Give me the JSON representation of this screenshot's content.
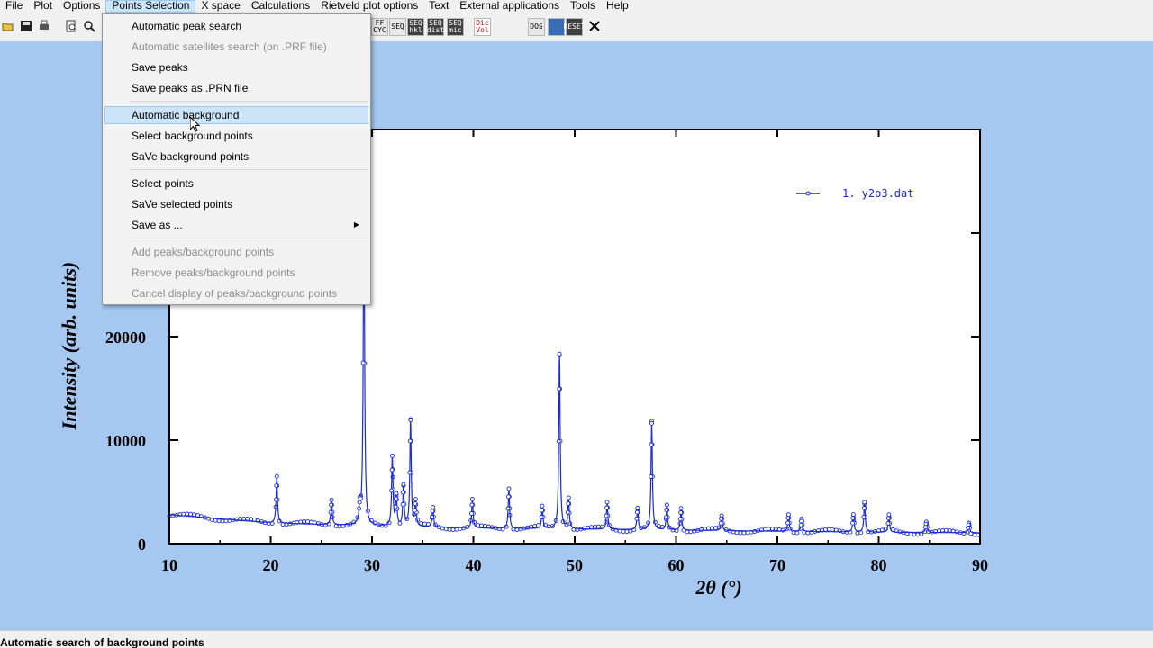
{
  "menubar": {
    "items": [
      "File",
      "Plot",
      "Options",
      "Points Selection",
      "X space",
      "Calculations",
      "Rietveld plot options",
      "Text",
      "External applications",
      "Tools",
      "Help"
    ],
    "active_index": 3
  },
  "toolbar": {
    "buttons": [
      "open-icon",
      "save-icon",
      "print-icon",
      "preview-icon",
      "zoom-icon"
    ],
    "labeled_buttons": [
      {
        "name": "ffcyc-button",
        "label": "FF CYC"
      },
      {
        "name": "seq-button",
        "label": "SEQ"
      },
      {
        "name": "seq-hkl-button",
        "label": "SEQ hkl"
      },
      {
        "name": "seq-dist-button",
        "label": "SEQ dist"
      },
      {
        "name": "seq-mic-button",
        "label": "SEQ mic"
      },
      {
        "name": "dicvol-button",
        "label": "Dic Vol"
      },
      {
        "name": "dos-button",
        "label": "DOS"
      },
      {
        "name": "image-button",
        "label": ""
      },
      {
        "name": "reset-button",
        "label": "RESET"
      }
    ],
    "close_icon": "close-icon"
  },
  "dropdown": {
    "items": [
      {
        "label": "Automatic peak search",
        "enabled": true
      },
      {
        "label": "Automatic satellites search (on .PRF file)",
        "enabled": false
      },
      {
        "label": "Save peaks",
        "enabled": true
      },
      {
        "label": "Save peaks as .PRN file",
        "enabled": true
      },
      {
        "label": "Automatic background",
        "enabled": true,
        "highlighted": true
      },
      {
        "label": "Select background points",
        "enabled": true
      },
      {
        "label": "SaVe background points",
        "enabled": true
      },
      {
        "label": "Select points",
        "enabled": true
      },
      {
        "label": "SaVe selected points",
        "enabled": true
      },
      {
        "label": "Save as ...",
        "enabled": true,
        "submenu": true
      },
      {
        "label": "Add peaks/background points",
        "enabled": false
      },
      {
        "label": "Remove peaks/background points",
        "enabled": false
      },
      {
        "label": "Cancel display of peaks/background points",
        "enabled": false
      }
    ]
  },
  "status": {
    "text": "Automatic search of background points"
  },
  "chart_data": {
    "type": "line",
    "title": "",
    "xlabel": "2θ (°)",
    "ylabel": "Intensity (arb. units)",
    "xlim": [
      10,
      90
    ],
    "ylim": [
      0,
      40000
    ],
    "x_ticks": [
      10,
      20,
      30,
      40,
      50,
      60,
      70,
      80,
      90
    ],
    "y_ticks": [
      0,
      10000,
      20000
    ],
    "legend": {
      "label": "1. y2o3.dat",
      "placement": "top-right"
    },
    "series_color": "#1a2bd1",
    "background": {
      "x": [
        10,
        20,
        30,
        40,
        50,
        60,
        70,
        80,
        90
      ],
      "y": [
        2800,
        2000,
        1700,
        1500,
        1400,
        1300,
        1200,
        1100,
        1050
      ]
    },
    "peaks": [
      {
        "x": 20.6,
        "y": 6500
      },
      {
        "x": 26.0,
        "y": 4200
      },
      {
        "x": 28.8,
        "y": 3300
      },
      {
        "x": 29.2,
        "y": 33000
      },
      {
        "x": 32.0,
        "y": 8300
      },
      {
        "x": 32.4,
        "y": 4500
      },
      {
        "x": 33.1,
        "y": 5500
      },
      {
        "x": 33.8,
        "y": 11800
      },
      {
        "x": 34.3,
        "y": 4000
      },
      {
        "x": 36.0,
        "y": 3500
      },
      {
        "x": 39.9,
        "y": 4300
      },
      {
        "x": 43.5,
        "y": 5300
      },
      {
        "x": 46.8,
        "y": 3600
      },
      {
        "x": 48.5,
        "y": 18300
      },
      {
        "x": 49.4,
        "y": 4300
      },
      {
        "x": 53.2,
        "y": 4000
      },
      {
        "x": 56.2,
        "y": 3400
      },
      {
        "x": 57.6,
        "y": 11600
      },
      {
        "x": 59.1,
        "y": 3700
      },
      {
        "x": 60.5,
        "y": 3400
      },
      {
        "x": 64.5,
        "y": 2700
      },
      {
        "x": 71.1,
        "y": 2800
      },
      {
        "x": 72.4,
        "y": 2400
      },
      {
        "x": 77.5,
        "y": 2800
      },
      {
        "x": 78.6,
        "y": 4000
      },
      {
        "x": 81.0,
        "y": 2800
      },
      {
        "x": 84.7,
        "y": 2100
      },
      {
        "x": 88.9,
        "y": 2000
      }
    ]
  }
}
